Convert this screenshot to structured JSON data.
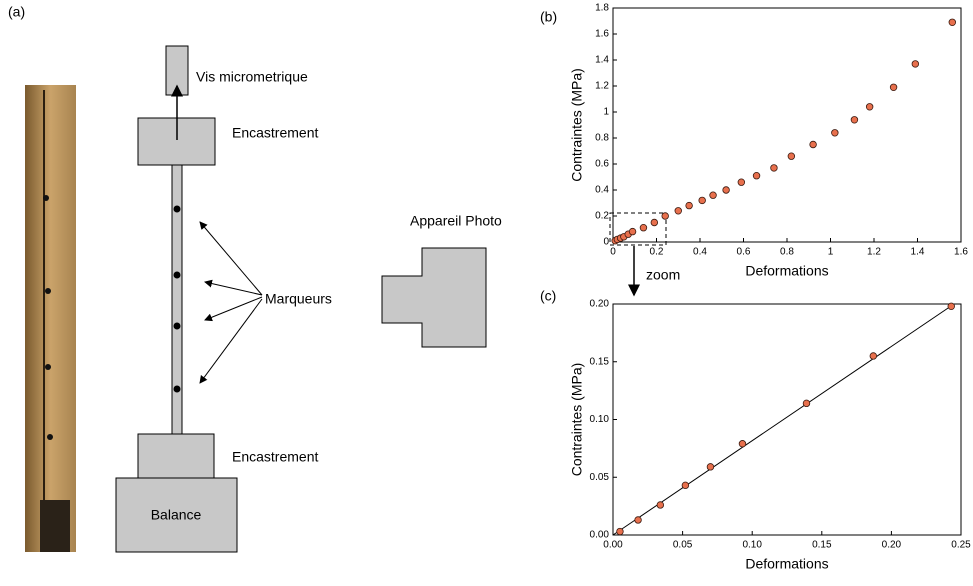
{
  "panels": {
    "a": "(a)",
    "b": "(b)",
    "c": "(c)"
  },
  "diagram": {
    "screw": "Vis micrometrique",
    "clamp_top": "Encastrement",
    "markers": "Marqueurs",
    "clamp_bottom": "Encastrement",
    "balance": "Balance",
    "camera": "Appareil Photo",
    "zoom": "zoom"
  },
  "chart_data": [
    {
      "type": "scatter",
      "xlabel": "Deformations",
      "ylabel": "Contraintes (MPa)",
      "xlim": [
        0,
        1.6
      ],
      "ylim": [
        0,
        1.8
      ],
      "xticks": [
        0,
        0.2,
        0.4,
        0.6,
        0.8,
        1,
        1.2,
        1.4,
        1.6
      ],
      "yticks": [
        0,
        0.2,
        0.4,
        0.6,
        0.8,
        1,
        1.2,
        1.4,
        1.6,
        1.8
      ],
      "series": [
        {
          "style": "points",
          "color": "#e8704d",
          "x": [
            0.01,
            0.02,
            0.035,
            0.05,
            0.07,
            0.09,
            0.14,
            0.19,
            0.24,
            0.3,
            0.35,
            0.41,
            0.46,
            0.52,
            0.59,
            0.66,
            0.74,
            0.82,
            0.92,
            1.02,
            1.11,
            1.18,
            1.29,
            1.39,
            1.56
          ],
          "values": [
            0.01,
            0.02,
            0.03,
            0.04,
            0.06,
            0.08,
            0.11,
            0.15,
            0.2,
            0.24,
            0.28,
            0.32,
            0.36,
            0.4,
            0.46,
            0.51,
            0.57,
            0.66,
            0.75,
            0.84,
            0.94,
            1.04,
            1.19,
            1.37,
            1.69
          ]
        }
      ]
    },
    {
      "type": "scatter",
      "xlabel": "Deformations",
      "ylabel": "Contraintes (MPa)",
      "xlim": [
        0,
        0.25
      ],
      "ylim": [
        0,
        0.2
      ],
      "xticks": [
        {
          "value": 0,
          "label": "0.00"
        },
        0.05,
        {
          "value": 0.1,
          "label": "0.10"
        },
        0.15,
        {
          "value": 0.2,
          "label": "0.20"
        },
        0.25
      ],
      "yticks": [
        {
          "value": 0,
          "label": "0.00"
        },
        0.05,
        {
          "value": 0.1,
          "label": "0.10"
        },
        0.15,
        {
          "value": 0.2,
          "label": "0.20"
        }
      ],
      "series": [
        {
          "style": "line",
          "color": "#000000",
          "x": [
            0,
            0.245
          ],
          "values": [
            0,
            0.2
          ]
        },
        {
          "style": "points",
          "color": "#e8704d",
          "x": [
            0.005,
            0.018,
            0.034,
            0.052,
            0.07,
            0.093,
            0.139,
            0.187,
            0.243
          ],
          "values": [
            0.003,
            0.013,
            0.026,
            0.043,
            0.059,
            0.079,
            0.114,
            0.155,
            0.198
          ]
        }
      ]
    }
  ]
}
